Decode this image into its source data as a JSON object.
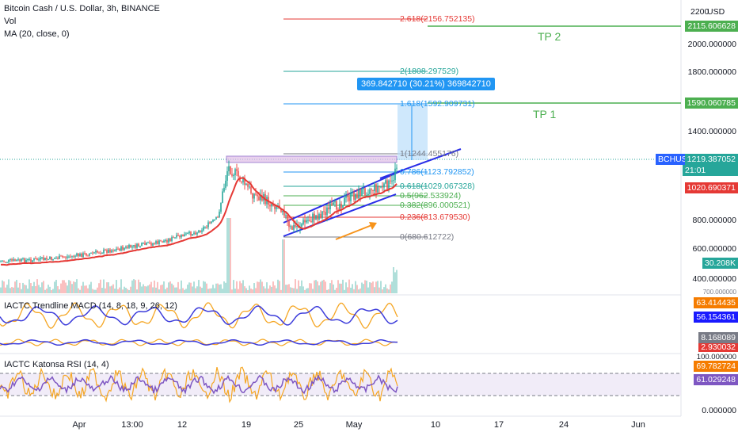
{
  "legend": {
    "title": "Bitcoin Cash / U.S. Dollar, 3h, BINANCE",
    "vol": "Vol",
    "ma": "MA (20, close, 0)"
  },
  "indicators": {
    "macd_title": "IACTC Trendline MACD (14, 8, 18, 9, 26, 12)",
    "rsi_title": "IACTC Katonsa RSI (14, 4)"
  },
  "price_axis": {
    "currency": "USD",
    "ticks": [
      "2200",
      "2000.000000",
      "1800.000000",
      "1400.000000",
      "800.000000",
      "600.000000",
      "400.000000"
    ]
  },
  "price_tags": {
    "tp2": "2115.606628",
    "tp1": "1590.060785",
    "bchusd_label": "BCHUSD",
    "bchusd_price": "1219.387052",
    "countdown": "21:01",
    "ma_price": "1020.690371",
    "volume": "30.208K",
    "macd_1": "63.414435",
    "macd_2": "56.154361",
    "macd_3": "8.168089",
    "macd_4": "2.930032",
    "rsi_1": "69.782724",
    "rsi_2": "61.029248",
    "rsi_top": "100.000000",
    "rsi_bottom": "0.000000",
    "vol_axis": "700.000000"
  },
  "fib_levels": [
    {
      "label": "2.618(2156.752135)",
      "color": "#e53935"
    },
    {
      "label": "2(1808.297529)",
      "color": "#26a69a"
    },
    {
      "label": "1.618(1592.909731)",
      "color": "#2196f3"
    },
    {
      "label": "1(1244.455176)",
      "color": "#787b86"
    },
    {
      "label": "0.786(1123.792852)",
      "color": "#2196f3"
    },
    {
      "label": "0.618(1029.067328)",
      "color": "#26a69a"
    },
    {
      "label": "0.5(962.533924)",
      "color": "#4caf50"
    },
    {
      "label": "0.382(896.000521)",
      "color": "#4caf50"
    },
    {
      "label": "0.236(813.679530)",
      "color": "#e53935"
    },
    {
      "label": "0(680.612722)",
      "color": "#787b86"
    }
  ],
  "targets": {
    "tp1": "TP 1",
    "tp2": "TP 2"
  },
  "measure": {
    "text": "369.842710 (30.21%) 369842710"
  },
  "time_axis": [
    "Apr",
    "13:00",
    "12",
    "19",
    "25",
    "May",
    "10",
    "17",
    "24",
    "Jun"
  ],
  "colors": {
    "up": "#26a69a",
    "down": "#ef5350",
    "ma": "#e53935",
    "channel": "#2a2ee8",
    "arrow": "#f7931a",
    "tp": "#4caf50",
    "macd_fast": "#f5a623",
    "macd_slow": "#3d3ddb",
    "rsi_line": "#7e57c2",
    "rsi_band": "#ede7f6"
  }
}
